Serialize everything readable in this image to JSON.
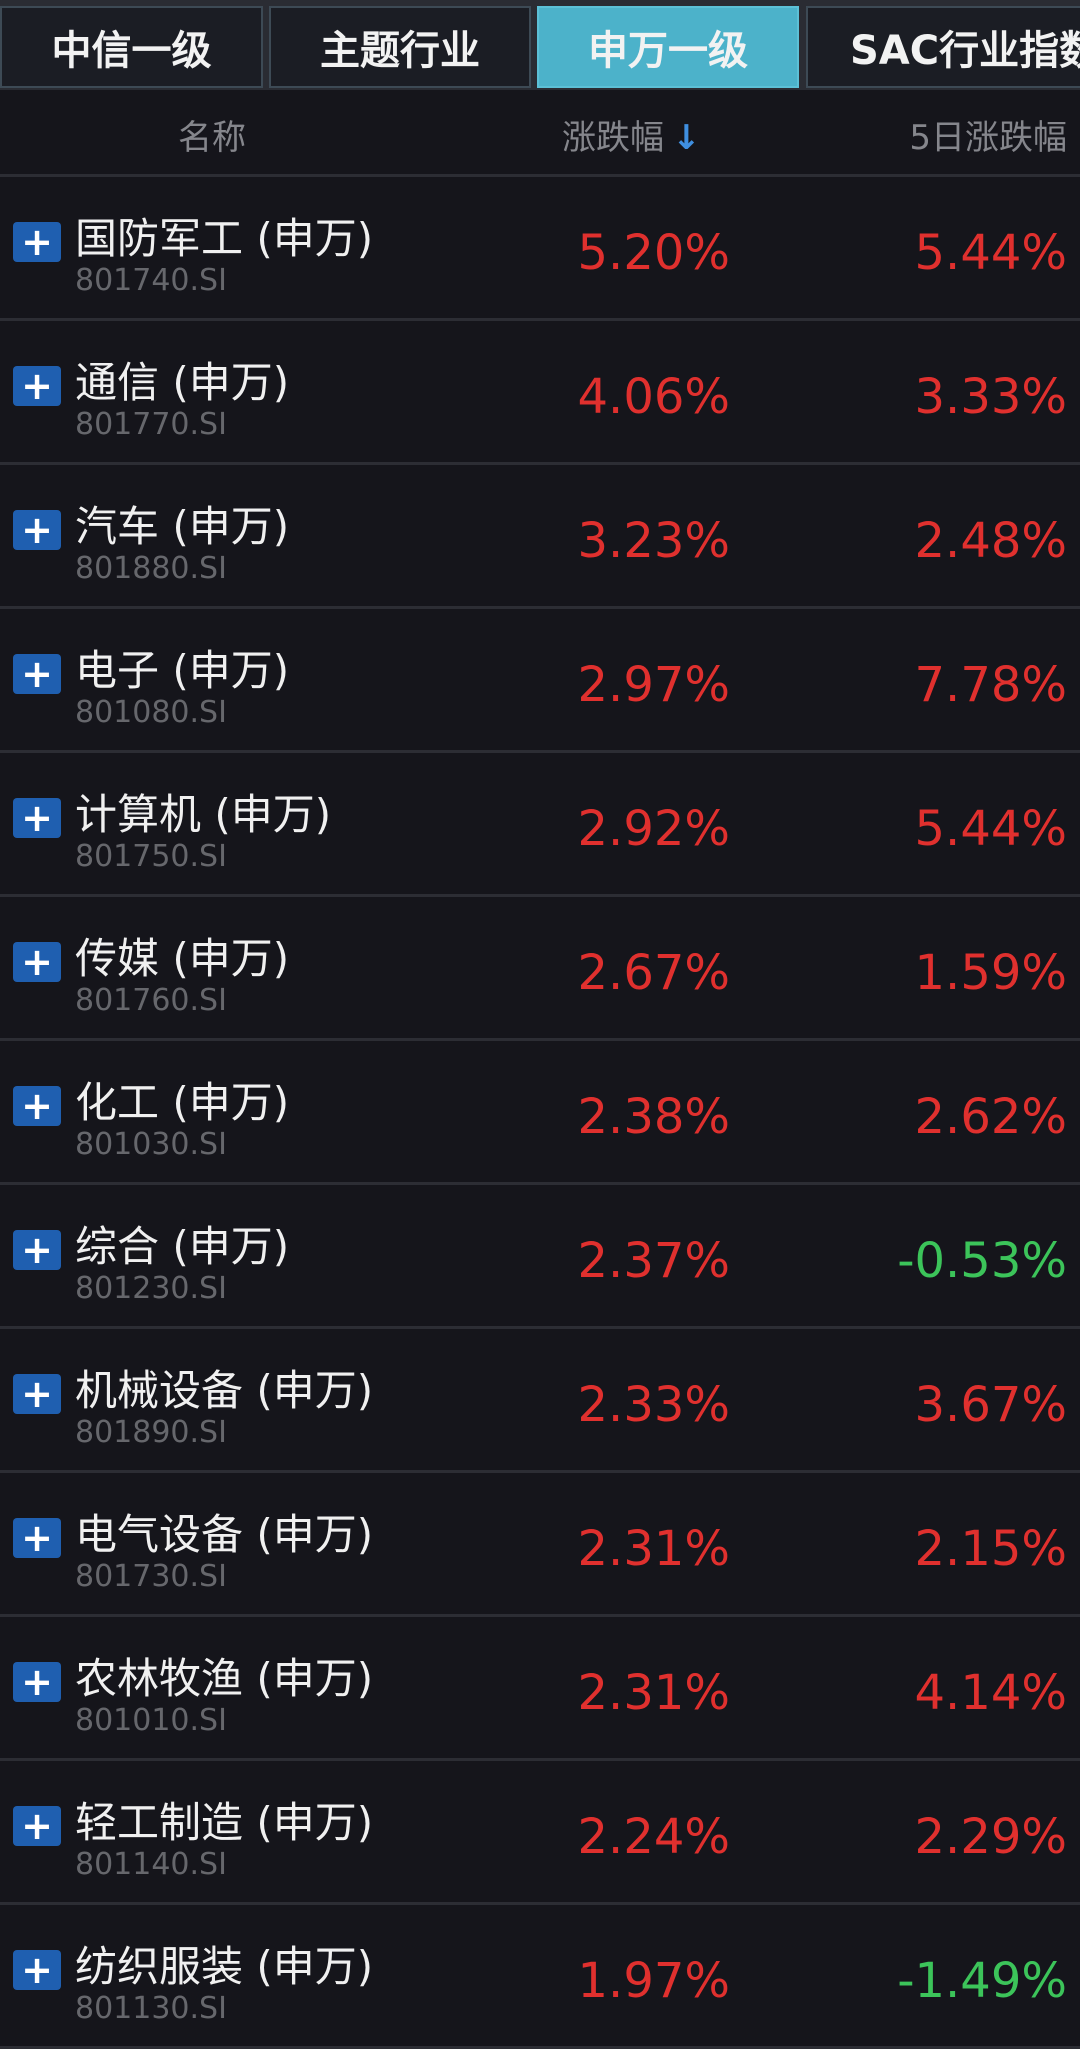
{
  "tabs": [
    {
      "label": "中信一级",
      "active": false
    },
    {
      "label": "主题行业",
      "active": false
    },
    {
      "label": "申万一级",
      "active": true
    },
    {
      "label": "SAC行业指数",
      "active": false
    }
  ],
  "header": {
    "name": "名称",
    "change": "涨跌幅",
    "sort_icon": "arrow-down-icon",
    "sort_arrow": "↓",
    "change5d": "5日涨跌幅"
  },
  "colors": {
    "up": "#e0302e",
    "down": "#3cc45a",
    "active_tab": "#4cb2ca",
    "plus_icon": "#1f5fb0"
  },
  "rows": [
    {
      "name": "国防军工 (申万)",
      "code": "801740.SI",
      "change": "5.20%",
      "change5d": "5.44%"
    },
    {
      "name": "通信 (申万)",
      "code": "801770.SI",
      "change": "4.06%",
      "change5d": "3.33%"
    },
    {
      "name": "汽车 (申万)",
      "code": "801880.SI",
      "change": "3.23%",
      "change5d": "2.48%"
    },
    {
      "name": "电子 (申万)",
      "code": "801080.SI",
      "change": "2.97%",
      "change5d": "7.78%"
    },
    {
      "name": "计算机 (申万)",
      "code": "801750.SI",
      "change": "2.92%",
      "change5d": "5.44%"
    },
    {
      "name": "传媒 (申万)",
      "code": "801760.SI",
      "change": "2.67%",
      "change5d": "1.59%"
    },
    {
      "name": "化工 (申万)",
      "code": "801030.SI",
      "change": "2.38%",
      "change5d": "2.62%"
    },
    {
      "name": "综合 (申万)",
      "code": "801230.SI",
      "change": "2.37%",
      "change5d": "-0.53%"
    },
    {
      "name": "机械设备 (申万)",
      "code": "801890.SI",
      "change": "2.33%",
      "change5d": "3.67%"
    },
    {
      "name": "电气设备 (申万)",
      "code": "801730.SI",
      "change": "2.31%",
      "change5d": "2.15%"
    },
    {
      "name": "农林牧渔 (申万)",
      "code": "801010.SI",
      "change": "2.31%",
      "change5d": "4.14%"
    },
    {
      "name": "轻工制造 (申万)",
      "code": "801140.SI",
      "change": "2.24%",
      "change5d": "2.29%"
    },
    {
      "name": "纺织服装 (申万)",
      "code": "801130.SI",
      "change": "1.97%",
      "change5d": "-1.49%"
    }
  ]
}
